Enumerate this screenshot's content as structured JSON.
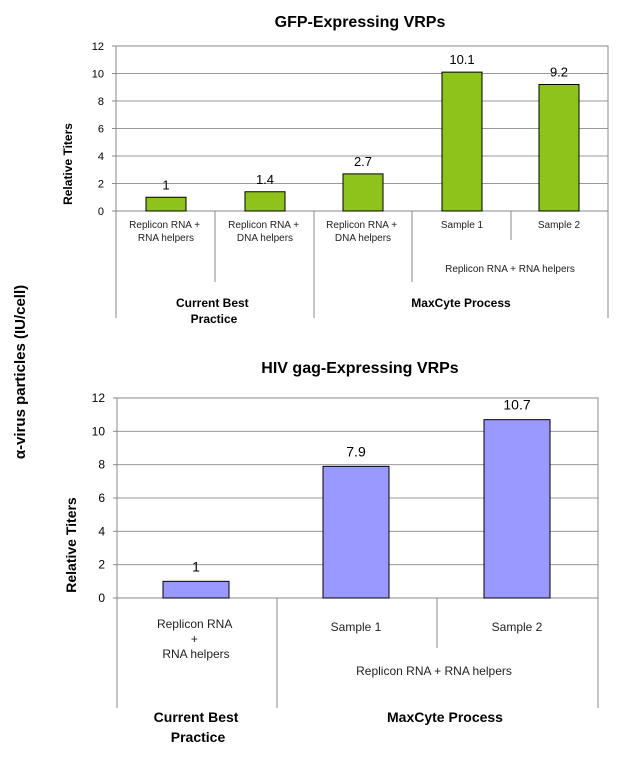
{
  "outer_ylabel": "α-virus particles (IU/cell)",
  "chart_data": [
    {
      "type": "bar",
      "title": "GFP-Expressing VRPs",
      "ylabel": "Relative Titers",
      "xlabel": "",
      "ylim": [
        0,
        12
      ],
      "yticks": [
        0,
        2,
        4,
        6,
        8,
        10,
        12
      ],
      "color": "#8dc31a",
      "categories": [
        "Replicon RNA +\nRNA helpers",
        "Replicon RNA +\nDNA helpers",
        "Replicon RNA +\nDNA helpers",
        "Sample 1",
        "Sample 2"
      ],
      "values": [
        1,
        1.4,
        2.7,
        10.1,
        9.2
      ],
      "value_labels": [
        "1",
        "1.4",
        "2.7",
        "10.1",
        "9.2"
      ],
      "subgroup_label": "Replicon RNA + RNA helpers",
      "groups": [
        {
          "label": "Current Best\nPractice"
        },
        {
          "label": "MaxCyte Process"
        }
      ]
    },
    {
      "type": "bar",
      "title": "HIV gag-Expressing VRPs",
      "ylabel": "Relative Titers",
      "xlabel": "",
      "ylim": [
        0,
        12
      ],
      "yticks": [
        0,
        2,
        4,
        6,
        8,
        10,
        12
      ],
      "color": "#9999ff",
      "categories": [
        "Replicon RNA\n+\nRNA helpers",
        "Sample 1",
        "Sample 2"
      ],
      "values": [
        1,
        7.9,
        10.7
      ],
      "value_labels": [
        "1",
        "7.9",
        "10.7"
      ],
      "subgroup_label": "Replicon RNA + RNA helpers",
      "groups": [
        {
          "label": "Current Best\nPractice"
        },
        {
          "label": "MaxCyte Process"
        }
      ]
    }
  ]
}
